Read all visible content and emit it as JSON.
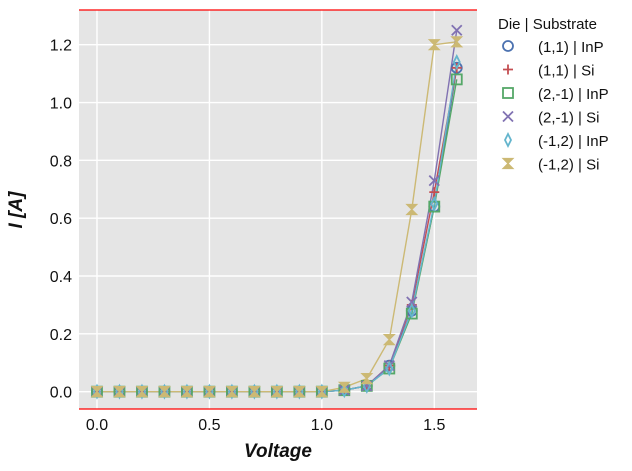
{
  "chart_data": {
    "type": "line",
    "title": "",
    "xlabel": "Voltage",
    "ylabel": "I [A]",
    "xlim": [
      -0.08,
      1.69
    ],
    "ylim": [
      -0.06,
      1.32
    ],
    "xticks": [
      0.0,
      0.5,
      1.0,
      1.5
    ],
    "xtick_labels": [
      "0.0",
      "0.5",
      "1.0",
      "1.5"
    ],
    "yticks": [
      0.0,
      0.2,
      0.4,
      0.6,
      0.8,
      1.0,
      1.2
    ],
    "ytick_labels": [
      "0.0",
      "0.2",
      "0.4",
      "0.6",
      "0.8",
      "1.0",
      "1.2"
    ],
    "grid": true,
    "background": "#e5e5e5",
    "spine_color": "#ff0000",
    "legend": {
      "title": "Die | Substrate",
      "placement": "outside-right-top"
    },
    "x": [
      0.0,
      0.1,
      0.2,
      0.3,
      0.4,
      0.5,
      0.6,
      0.7,
      0.8,
      0.9,
      1.0,
      1.1,
      1.2,
      1.3,
      1.4,
      1.5,
      1.6
    ],
    "series": [
      {
        "name": "(1,1) | InP",
        "marker": "circle",
        "color": "#4c72b0",
        "values": [
          0,
          0,
          0,
          0,
          0,
          0,
          0,
          0,
          0,
          0,
          0,
          0.005,
          0.02,
          0.09,
          0.28,
          0.64,
          1.12
        ]
      },
      {
        "name": "(1,1) | Si",
        "marker": "plus",
        "color": "#c44e52",
        "values": [
          0,
          0,
          0,
          0,
          0,
          0,
          0,
          0,
          0,
          0,
          0,
          0.005,
          0.02,
          0.09,
          0.3,
          0.69,
          1.12
        ]
      },
      {
        "name": "(2,-1) | InP",
        "marker": "square",
        "color": "#55a868",
        "values": [
          0,
          0,
          0,
          0,
          0,
          0,
          0,
          0,
          0,
          0,
          0,
          0.005,
          0.02,
          0.08,
          0.27,
          0.64,
          1.08
        ]
      },
      {
        "name": "(2,-1) | Si",
        "marker": "x",
        "color": "#8172b2",
        "values": [
          0,
          0,
          0,
          0,
          0,
          0,
          0,
          0,
          0,
          0,
          0,
          0.005,
          0.02,
          0.09,
          0.31,
          0.73,
          1.25
        ]
      },
      {
        "name": "(-1,2) | InP",
        "marker": "thin_diamond",
        "color": "#64b5cd",
        "values": [
          0,
          0,
          0,
          0,
          0,
          0,
          0,
          0,
          0,
          0,
          0,
          0.005,
          0.02,
          0.08,
          0.28,
          0.65,
          1.14
        ]
      },
      {
        "name": "(-1,2) | Si",
        "marker": "hourglass",
        "color": "#ccb974",
        "values": [
          0,
          0,
          0,
          0,
          0,
          0,
          0,
          0,
          0,
          0,
          0,
          0.015,
          0.045,
          0.18,
          0.63,
          1.2,
          1.21
        ]
      }
    ]
  }
}
